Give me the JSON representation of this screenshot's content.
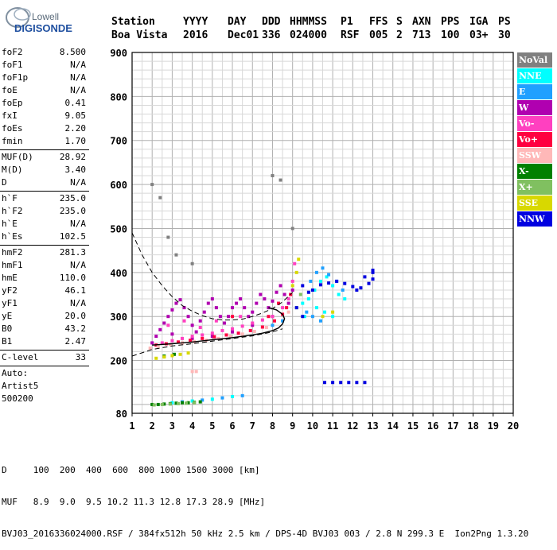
{
  "logo": {
    "line1": "Lowell",
    "line2": "DIGISONDE"
  },
  "header": {
    "labels": [
      {
        "text": "Station"
      },
      {
        "text": "YYYY"
      },
      {
        "text": "DAY"
      },
      {
        "text": "DDD"
      },
      {
        "text": "HHMMSS"
      },
      {
        "text": "P1"
      },
      {
        "text": "FFS"
      },
      {
        "text": "S"
      },
      {
        "text": "AXN"
      },
      {
        "text": "PPS"
      },
      {
        "text": "IGA"
      },
      {
        "text": "PS"
      }
    ],
    "values": [
      {
        "text": "Boa Vista"
      },
      {
        "text": "2016"
      },
      {
        "text": "Dec01"
      },
      {
        "text": "336"
      },
      {
        "text": "024000"
      },
      {
        "text": "RSF"
      },
      {
        "text": "005"
      },
      {
        "text": "2"
      },
      {
        "text": "713"
      },
      {
        "text": "100"
      },
      {
        "text": "03+"
      },
      {
        "text": "30"
      }
    ]
  },
  "params": [
    {
      "label": "foF2",
      "value": "8.500"
    },
    {
      "label": "foF1",
      "value": "N/A"
    },
    {
      "label": "foF1p",
      "value": "N/A"
    },
    {
      "label": "foE",
      "value": "N/A"
    },
    {
      "label": "foEp",
      "value": "0.41"
    },
    {
      "label": "fxI",
      "value": "9.05"
    },
    {
      "label": "foEs",
      "value": "2.20"
    },
    {
      "label": "fmin",
      "value": "1.70"
    },
    {
      "sep": true
    },
    {
      "label": "MUF(D)",
      "value": "28.92"
    },
    {
      "label": "M(D)",
      "value": "3.40"
    },
    {
      "label": "D",
      "value": "N/A"
    },
    {
      "sep": true
    },
    {
      "label": "h`F",
      "value": "235.0"
    },
    {
      "label": "h`F2",
      "value": "235.0"
    },
    {
      "label": "h`E",
      "value": "N/A"
    },
    {
      "label": "h`Es",
      "value": "102.5"
    },
    {
      "sep": true
    },
    {
      "label": "hmF2",
      "value": "281.3"
    },
    {
      "label": "hmF1",
      "value": "N/A"
    },
    {
      "label": "hmE",
      "value": "110.0"
    },
    {
      "label": "yF2",
      "value": "46.1"
    },
    {
      "label": "yF1",
      "value": "N/A"
    },
    {
      "label": "yE",
      "value": "20.0"
    },
    {
      "label": "B0",
      "value": "43.2"
    },
    {
      "label": "B1",
      "value": "2.47"
    },
    {
      "sep": true
    },
    {
      "label": "C-level",
      "value": "33"
    },
    {
      "sep": true
    },
    {
      "label": "Auto:",
      "value": ""
    },
    {
      "label": "Artist5",
      "value": ""
    },
    {
      "label": "500200",
      "value": ""
    }
  ],
  "legend": [
    {
      "name": "NoVal",
      "color": "#808080",
      "text_color": "#ffffff"
    },
    {
      "name": "NNE",
      "color": "#00ffff",
      "text_color": "#ffffff"
    },
    {
      "name": "E",
      "color": "#20a0ff",
      "text_color": "#ffffff"
    },
    {
      "name": "W",
      "color": "#b000b0",
      "text_color": "#ffffff"
    },
    {
      "name": "Vo-",
      "color": "#ff40c0",
      "text_color": "#ffffff"
    },
    {
      "name": "Vo+",
      "color": "#ff0040",
      "text_color": "#ffffff"
    },
    {
      "name": "SSW",
      "color": "#ffb8b8",
      "text_color": "#ffffff"
    },
    {
      "name": "X-",
      "color": "#008000",
      "text_color": "#ffffff"
    },
    {
      "name": "X+",
      "color": "#80c060",
      "text_color": "#ffffff"
    },
    {
      "name": "SSE",
      "color": "#d8d800",
      "text_color": "#ffffff"
    },
    {
      "name": "NNW",
      "color": "#0000e0",
      "text_color": "#ffffff"
    }
  ],
  "footer": {
    "line1": "D     100  200  400  600  800 1000 1500 3000 [km]",
    "line2": "MUF   8.9  9.0  9.5 10.2 11.3 12.8 17.3 28.9 [MHz]",
    "line3": "BVJ03_2016336024000.RSF / 384fx512h 50 kHz 2.5 km / DPS-4D BVJ03 003 / 2.8 N 299.3 E  Ion2Png 1.3.20"
  },
  "chart_data": {
    "type": "scatter",
    "title": "",
    "xlabel": "",
    "ylabel": "",
    "xlim": [
      1,
      20
    ],
    "ylim": [
      80,
      900
    ],
    "x_ticks": [
      1,
      2,
      3,
      4,
      5,
      6,
      7,
      8,
      9,
      10,
      11,
      12,
      13,
      14,
      15,
      16,
      17,
      18,
      19,
      20
    ],
    "y_ticks": [
      80,
      200,
      300,
      400,
      500,
      600,
      700,
      800,
      900
    ],
    "grid": true,
    "legend_position": "right",
    "series": [
      {
        "name": "W",
        "color": "#b000b0",
        "points": [
          [
            2.0,
            240
          ],
          [
            2.2,
            255
          ],
          [
            2.4,
            270
          ],
          [
            2.6,
            285
          ],
          [
            2.8,
            300
          ],
          [
            3.0,
            315
          ],
          [
            3.2,
            330
          ],
          [
            3.4,
            338
          ],
          [
            3.6,
            320
          ],
          [
            3.8,
            300
          ],
          [
            4.0,
            280
          ],
          [
            4.2,
            265
          ],
          [
            4.4,
            290
          ],
          [
            4.6,
            310
          ],
          [
            4.8,
            330
          ],
          [
            5.0,
            340
          ],
          [
            5.2,
            320
          ],
          [
            5.4,
            300
          ],
          [
            5.6,
            285
          ],
          [
            5.8,
            300
          ],
          [
            6.0,
            320
          ],
          [
            6.2,
            330
          ],
          [
            6.4,
            340
          ],
          [
            6.6,
            320
          ],
          [
            6.8,
            300
          ],
          [
            7.0,
            310
          ],
          [
            7.2,
            330
          ],
          [
            7.4,
            350
          ],
          [
            7.6,
            340
          ],
          [
            7.8,
            320
          ],
          [
            8.0,
            335
          ],
          [
            8.2,
            355
          ],
          [
            8.4,
            370
          ],
          [
            8.6,
            350
          ],
          [
            8.8,
            330
          ],
          [
            9.0,
            360
          ],
          [
            3.0,
            260
          ],
          [
            4.0,
            250
          ],
          [
            5.0,
            255
          ],
          [
            6.0,
            265
          ],
          [
            7.0,
            280
          ],
          [
            8.0,
            300
          ]
        ]
      },
      {
        "name": "Vo-",
        "color": "#ff40c0",
        "points": [
          [
            2.5,
            240
          ],
          [
            3.0,
            245
          ],
          [
            3.5,
            250
          ],
          [
            4.0,
            255
          ],
          [
            4.5,
            258
          ],
          [
            5.0,
            262
          ],
          [
            5.5,
            268
          ],
          [
            6.0,
            272
          ],
          [
            6.5,
            278
          ],
          [
            7.0,
            285
          ],
          [
            7.5,
            292
          ],
          [
            8.0,
            300
          ],
          [
            8.5,
            320
          ],
          [
            8.8,
            340
          ],
          [
            9.0,
            380
          ],
          [
            9.1,
            420
          ],
          [
            2.8,
            280
          ],
          [
            3.6,
            290
          ],
          [
            4.4,
            275
          ],
          [
            5.2,
            290
          ],
          [
            6.4,
            300
          ]
        ]
      },
      {
        "name": "Vo+",
        "color": "#ff0040",
        "points": [
          [
            2.2,
            235
          ],
          [
            2.7,
            238
          ],
          [
            3.3,
            242
          ],
          [
            3.9,
            246
          ],
          [
            4.5,
            250
          ],
          [
            5.1,
            254
          ],
          [
            5.7,
            258
          ],
          [
            6.3,
            262
          ],
          [
            6.9,
            268
          ],
          [
            7.5,
            276
          ],
          [
            8.1,
            290
          ],
          [
            8.5,
            305
          ],
          [
            8.7,
            320
          ],
          [
            8.9,
            350
          ],
          [
            7.8,
            300
          ],
          [
            8.3,
            330
          ],
          [
            6.0,
            300
          ]
        ]
      },
      {
        "name": "NNE",
        "color": "#00ffff",
        "points": [
          [
            9.8,
            340
          ],
          [
            10.1,
            360
          ],
          [
            10.4,
            380
          ],
          [
            10.7,
            390
          ],
          [
            11.0,
            370
          ],
          [
            11.3,
            350
          ],
          [
            11.6,
            340
          ],
          [
            10.2,
            320
          ],
          [
            10.6,
            310
          ],
          [
            11.0,
            300
          ],
          [
            9.6,
            300
          ],
          [
            3.0,
            104
          ],
          [
            4.0,
            108
          ],
          [
            5.0,
            112
          ],
          [
            6.0,
            118
          ],
          [
            9.5,
            330
          ]
        ]
      },
      {
        "name": "E",
        "color": "#20a0ff",
        "points": [
          [
            9.9,
            380
          ],
          [
            10.2,
            400
          ],
          [
            10.5,
            410
          ],
          [
            10.8,
            395
          ],
          [
            11.2,
            380
          ],
          [
            11.5,
            360
          ],
          [
            10.0,
            300
          ],
          [
            10.4,
            290
          ],
          [
            9.7,
            310
          ],
          [
            8.5,
            290
          ],
          [
            8.0,
            280
          ],
          [
            3.5,
            106
          ],
          [
            4.5,
            110
          ],
          [
            5.5,
            115
          ],
          [
            6.5,
            120
          ]
        ]
      },
      {
        "name": "SSW",
        "color": "#ffb8b8",
        "points": [
          [
            1.9,
            228
          ],
          [
            2.3,
            232
          ],
          [
            2.9,
            236
          ],
          [
            3.5,
            240
          ],
          [
            4.1,
            243
          ],
          [
            4.7,
            246
          ],
          [
            5.3,
            250
          ],
          [
            5.9,
            255
          ],
          [
            6.5,
            260
          ],
          [
            7.1,
            266
          ],
          [
            7.7,
            275
          ],
          [
            4.0,
            175
          ],
          [
            4.2,
            175
          ],
          [
            8.8,
            310
          ]
        ]
      },
      {
        "name": "X-",
        "color": "#008000",
        "points": [
          [
            2.0,
            100
          ],
          [
            2.3,
            100
          ],
          [
            2.6,
            101
          ],
          [
            2.9,
            102
          ],
          [
            3.2,
            103
          ],
          [
            3.5,
            104
          ],
          [
            3.8,
            104
          ],
          [
            4.1,
            105
          ],
          [
            4.4,
            106
          ],
          [
            2.6,
            210
          ],
          [
            3.1,
            214
          ]
        ]
      },
      {
        "name": "X+",
        "color": "#80c060",
        "points": [
          [
            2.1,
            99
          ],
          [
            2.5,
            100
          ],
          [
            2.9,
            101
          ],
          [
            3.3,
            102
          ],
          [
            3.7,
            103
          ],
          [
            4.1,
            104
          ],
          [
            9.2,
            320
          ],
          [
            9.4,
            350
          ]
        ]
      },
      {
        "name": "SSE",
        "color": "#d8d800",
        "points": [
          [
            2.2,
            205
          ],
          [
            2.6,
            208
          ],
          [
            3.0,
            211
          ],
          [
            3.4,
            214
          ],
          [
            3.8,
            217
          ],
          [
            9.0,
            370
          ],
          [
            9.2,
            400
          ],
          [
            9.3,
            430
          ],
          [
            10.5,
            300
          ],
          [
            11.0,
            310
          ]
        ]
      },
      {
        "name": "NNW",
        "color": "#0000e0",
        "points": [
          [
            10.0,
            360
          ],
          [
            10.4,
            372
          ],
          [
            10.8,
            376
          ],
          [
            11.2,
            380
          ],
          [
            11.6,
            375
          ],
          [
            12.0,
            368
          ],
          [
            12.4,
            365
          ],
          [
            12.8,
            375
          ],
          [
            13.0,
            385
          ],
          [
            13.0,
            400
          ],
          [
            12.6,
            390
          ],
          [
            12.2,
            360
          ],
          [
            9.5,
            370
          ],
          [
            9.8,
            355
          ],
          [
            10.6,
            150
          ],
          [
            11.0,
            150
          ],
          [
            11.4,
            150
          ],
          [
            11.8,
            150
          ],
          [
            12.2,
            150
          ],
          [
            12.6,
            150
          ],
          [
            9.5,
            300
          ],
          [
            9.2,
            320
          ],
          [
            13.0,
            405
          ]
        ]
      },
      {
        "name": "NoVal",
        "color": "#808080",
        "points": [
          [
            2.0,
            600
          ],
          [
            2.4,
            570
          ],
          [
            2.8,
            480
          ],
          [
            3.2,
            440
          ],
          [
            4.0,
            420
          ],
          [
            8.0,
            620
          ],
          [
            8.4,
            610
          ],
          [
            9.0,
            500
          ]
        ]
      }
    ],
    "curves": [
      {
        "kind": "dashed",
        "points": [
          [
            1.0,
            490
          ],
          [
            1.5,
            440
          ],
          [
            2.0,
            400
          ],
          [
            2.5,
            370
          ],
          [
            3.0,
            345
          ],
          [
            3.5,
            325
          ],
          [
            4.0,
            312
          ],
          [
            4.5,
            302
          ],
          [
            5.0,
            295
          ],
          [
            5.5,
            292
          ],
          [
            6.0,
            292
          ],
          [
            6.5,
            294
          ],
          [
            7.0,
            300
          ],
          [
            7.5,
            308
          ],
          [
            8.0,
            318
          ],
          [
            8.5,
            333
          ],
          [
            9.0,
            355
          ]
        ]
      },
      {
        "kind": "dashed",
        "points": [
          [
            1.0,
            210
          ],
          [
            2.0,
            225
          ],
          [
            3.0,
            233
          ],
          [
            4.0,
            238
          ],
          [
            5.0,
            244
          ],
          [
            6.0,
            250
          ],
          [
            7.0,
            256
          ],
          [
            8.0,
            265
          ],
          [
            8.5,
            272
          ]
        ]
      },
      {
        "kind": "solid",
        "points": [
          [
            2.0,
            235
          ],
          [
            3.0,
            238
          ],
          [
            4.0,
            242
          ],
          [
            5.0,
            247
          ],
          [
            6.0,
            252
          ],
          [
            7.0,
            258
          ],
          [
            7.5,
            262
          ],
          [
            8.0,
            268
          ],
          [
            8.3,
            274
          ],
          [
            8.5,
            283
          ],
          [
            8.6,
            295
          ],
          [
            8.5,
            305
          ],
          [
            8.2,
            315
          ],
          [
            7.8,
            320
          ]
        ]
      }
    ]
  }
}
